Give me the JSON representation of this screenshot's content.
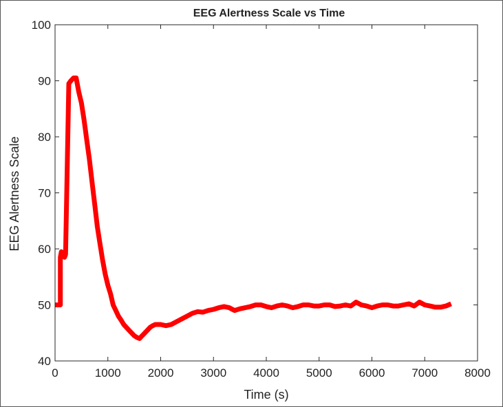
{
  "chart_data": {
    "type": "line",
    "title": "EEG Alertness Scale vs Time",
    "xlabel": "Time (s)",
    "ylabel": "EEG Alertness Scale",
    "xlim": [
      0,
      8000
    ],
    "ylim": [
      40,
      100
    ],
    "xticks": [
      "0",
      "1000",
      "2000",
      "3000",
      "4000",
      "5000",
      "6000",
      "7000",
      "8000"
    ],
    "yticks": [
      "40",
      "50",
      "60",
      "70",
      "80",
      "90",
      "100"
    ],
    "grid": false,
    "line_color": "#ff0000",
    "series": [
      {
        "name": "EEG Alertness",
        "x": [
          0,
          100,
          100,
          120,
          180,
          200,
          200,
          260,
          300,
          350,
          400,
          450,
          500,
          550,
          600,
          650,
          700,
          750,
          800,
          850,
          900,
          950,
          1000,
          1050,
          1100,
          1150,
          1200,
          1250,
          1300,
          1350,
          1400,
          1450,
          1500,
          1550,
          1600,
          1650,
          1700,
          1750,
          1800,
          1850,
          1900,
          2000,
          2100,
          2200,
          2300,
          2400,
          2500,
          2600,
          2700,
          2800,
          2900,
          3000,
          3100,
          3200,
          3300,
          3400,
          3500,
          3600,
          3700,
          3800,
          3900,
          4000,
          4100,
          4200,
          4300,
          4400,
          4500,
          4600,
          4700,
          4800,
          4900,
          5000,
          5100,
          5200,
          5300,
          5400,
          5500,
          5600,
          5700,
          5800,
          5900,
          6000,
          6100,
          6200,
          6300,
          6400,
          6500,
          6600,
          6700,
          6800,
          6900,
          7000,
          7100,
          7200,
          7300,
          7400,
          7500
        ],
        "values": [
          50,
          50,
          58.5,
          59.5,
          58.5,
          59,
          59,
          89.5,
          90,
          90.5,
          90.5,
          88,
          86,
          83,
          79.5,
          76,
          72,
          68,
          64,
          61,
          58,
          55.5,
          53.5,
          52,
          50,
          49,
          48,
          47.3,
          46.5,
          46,
          45.5,
          45,
          44.5,
          44.2,
          44,
          44.5,
          45,
          45.5,
          46,
          46.3,
          46.5,
          46.5,
          46.3,
          46.5,
          47,
          47.5,
          48,
          48.5,
          48.8,
          48.7,
          49,
          49.2,
          49.5,
          49.7,
          49.5,
          49,
          49.3,
          49.5,
          49.7,
          50,
          50,
          49.7,
          49.5,
          49.8,
          50,
          49.8,
          49.5,
          49.7,
          50,
          50,
          49.8,
          49.8,
          50,
          50,
          49.7,
          49.8,
          50,
          49.8,
          50.5,
          50,
          49.8,
          49.5,
          49.8,
          50,
          50,
          49.8,
          49.8,
          50,
          50.2,
          49.8,
          50.5,
          50,
          49.8,
          49.6,
          49.6,
          49.8,
          50.2
        ]
      }
    ]
  }
}
